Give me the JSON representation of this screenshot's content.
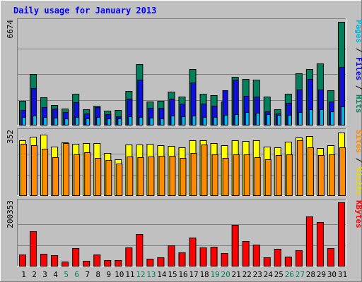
{
  "chart_data": {
    "type": "bar",
    "title": "Daily usage for January 2013",
    "categories": [
      "1",
      "2",
      "3",
      "4",
      "5",
      "6",
      "7",
      "8",
      "9",
      "10",
      "11",
      "12",
      "13",
      "14",
      "15",
      "16",
      "17",
      "18",
      "19",
      "20",
      "21",
      "22",
      "23",
      "24",
      "25",
      "26",
      "27",
      "28",
      "29",
      "30",
      "31"
    ],
    "weekend_days": [
      "5",
      "6",
      "12",
      "13",
      "19",
      "20",
      "26",
      "27"
    ],
    "colors": {
      "background": "#c0c0c0",
      "title": "#0000ff",
      "weekday_label": "#000000",
      "weekend_label": "#00805c",
      "legend_separator": "#000000"
    },
    "panels": [
      {
        "id": "hits",
        "ymax": 6674,
        "ymax_label": "6674",
        "legend": [
          {
            "text": "Pages",
            "color": "#00b0d8"
          },
          {
            "text": "Files",
            "color": "#0000e0"
          },
          {
            "text": "Hits",
            "color": "#00805c"
          }
        ],
        "series": [
          {
            "name": "Hits",
            "color": "#00805c",
            "values": [
              1537,
              3287,
              1777,
              1277,
              1052,
              2033,
              1003,
              1251,
              915,
              944,
              2203,
              3952,
              1523,
              1542,
              2133,
              1817,
              3629,
              2015,
              1942,
              1522,
              3130,
              2968,
              2946,
              1825,
              1005,
              2005,
              3334,
              3592,
              3996,
              2252,
              6674
            ]
          },
          {
            "name": "Files",
            "color": "#1010e0",
            "values": [
              969,
              2386,
              1128,
              1042,
              832,
              1448,
              722,
              1138,
              693,
              555,
              1700,
              2926,
              1088,
              1076,
              1691,
              1377,
              2748,
              1352,
              1244,
              2244,
              2938,
              1885,
              1810,
              872,
              716,
              1420,
              2292,
              2975,
              2306,
              1510,
              3761
            ]
          },
          {
            "name": "Pages",
            "color": "#00b8f0",
            "values": [
              499,
              593,
              508,
              470,
              405,
              505,
              405,
              502,
              424,
              427,
              551,
              522,
              464,
              411,
              601,
              528,
              577,
              520,
              495,
              619,
              683,
              845,
              769,
              708,
              633,
              632,
              842,
              1019,
              1014,
              866,
              1196
            ]
          }
        ]
      },
      {
        "id": "visits",
        "ymax": 352,
        "ymax_label": "352",
        "legend": [
          {
            "text": "Sites",
            "color": "#ff8800"
          },
          {
            "text": "Visits",
            "color": "#e8d800"
          }
        ],
        "series": [
          {
            "name": "Visits",
            "color": "#ffff00",
            "values": [
              304,
              325,
              336,
              269,
              294,
              286,
              289,
              291,
              235,
              201,
              281,
              283,
              287,
              279,
              273,
              266,
              306,
              306,
              289,
              279,
              306,
              300,
              307,
              270,
              264,
              299,
              320,
              329,
              263,
              278,
              350
            ]
          },
          {
            "name": "Sites",
            "color": "#ff8c00",
            "values": [
              284,
              279,
              257,
              213,
              288,
              225,
              238,
              209,
              197,
              175,
              217,
              212,
              217,
              220,
              219,
              206,
              233,
              281,
              227,
              209,
              225,
              227,
              212,
              200,
              224,
              227,
              306,
              265,
              223,
              228,
              267
            ]
          }
        ]
      },
      {
        "id": "kbytes",
        "ymax": 200353,
        "ymax_label": "200353",
        "legend": [
          {
            "text": "KBytes",
            "color": "#ff0000"
          }
        ],
        "series": [
          {
            "name": "KBytes",
            "color": "#ff0000",
            "values": [
              35000,
              110000,
              38000,
              34000,
              14000,
              55000,
              15000,
              35000,
              17000,
              17000,
              57000,
              101000,
              22000,
              27000,
              64000,
              42000,
              89000,
              58000,
              59000,
              39000,
              130000,
              79000,
              66000,
              26000,
              54000,
              28000,
              50000,
              155000,
              138000,
              55000,
              200353
            ]
          }
        ]
      }
    ]
  }
}
